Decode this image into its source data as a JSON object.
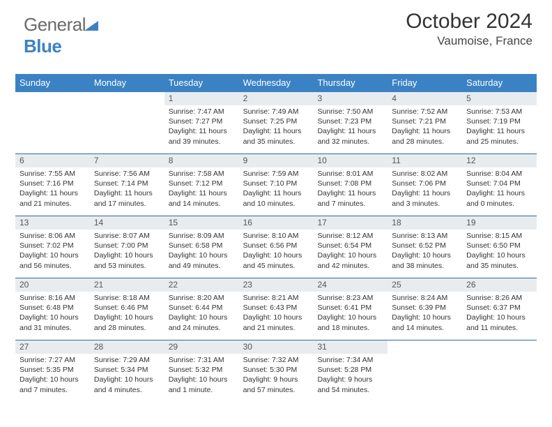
{
  "logo": {
    "text1": "General",
    "text2": "Blue"
  },
  "title": "October 2024",
  "subtitle": "Vaumoise, France",
  "colors": {
    "header_bg": "#3b82c4",
    "header_text": "#ffffff",
    "week_divider": "#2f6aa3",
    "daynum_bg": "#e8ecef",
    "body_text": "#333333"
  },
  "calendar": {
    "day_names": [
      "Sunday",
      "Monday",
      "Tuesday",
      "Wednesday",
      "Thursday",
      "Friday",
      "Saturday"
    ],
    "weeks": [
      [
        null,
        null,
        {
          "n": "1",
          "sunrise": "Sunrise: 7:47 AM",
          "sunset": "Sunset: 7:27 PM",
          "daylight": "Daylight: 11 hours and 39 minutes."
        },
        {
          "n": "2",
          "sunrise": "Sunrise: 7:49 AM",
          "sunset": "Sunset: 7:25 PM",
          "daylight": "Daylight: 11 hours and 35 minutes."
        },
        {
          "n": "3",
          "sunrise": "Sunrise: 7:50 AM",
          "sunset": "Sunset: 7:23 PM",
          "daylight": "Daylight: 11 hours and 32 minutes."
        },
        {
          "n": "4",
          "sunrise": "Sunrise: 7:52 AM",
          "sunset": "Sunset: 7:21 PM",
          "daylight": "Daylight: 11 hours and 28 minutes."
        },
        {
          "n": "5",
          "sunrise": "Sunrise: 7:53 AM",
          "sunset": "Sunset: 7:19 PM",
          "daylight": "Daylight: 11 hours and 25 minutes."
        }
      ],
      [
        {
          "n": "6",
          "sunrise": "Sunrise: 7:55 AM",
          "sunset": "Sunset: 7:16 PM",
          "daylight": "Daylight: 11 hours and 21 minutes."
        },
        {
          "n": "7",
          "sunrise": "Sunrise: 7:56 AM",
          "sunset": "Sunset: 7:14 PM",
          "daylight": "Daylight: 11 hours and 17 minutes."
        },
        {
          "n": "8",
          "sunrise": "Sunrise: 7:58 AM",
          "sunset": "Sunset: 7:12 PM",
          "daylight": "Daylight: 11 hours and 14 minutes."
        },
        {
          "n": "9",
          "sunrise": "Sunrise: 7:59 AM",
          "sunset": "Sunset: 7:10 PM",
          "daylight": "Daylight: 11 hours and 10 minutes."
        },
        {
          "n": "10",
          "sunrise": "Sunrise: 8:01 AM",
          "sunset": "Sunset: 7:08 PM",
          "daylight": "Daylight: 11 hours and 7 minutes."
        },
        {
          "n": "11",
          "sunrise": "Sunrise: 8:02 AM",
          "sunset": "Sunset: 7:06 PM",
          "daylight": "Daylight: 11 hours and 3 minutes."
        },
        {
          "n": "12",
          "sunrise": "Sunrise: 8:04 AM",
          "sunset": "Sunset: 7:04 PM",
          "daylight": "Daylight: 11 hours and 0 minutes."
        }
      ],
      [
        {
          "n": "13",
          "sunrise": "Sunrise: 8:06 AM",
          "sunset": "Sunset: 7:02 PM",
          "daylight": "Daylight: 10 hours and 56 minutes."
        },
        {
          "n": "14",
          "sunrise": "Sunrise: 8:07 AM",
          "sunset": "Sunset: 7:00 PM",
          "daylight": "Daylight: 10 hours and 53 minutes."
        },
        {
          "n": "15",
          "sunrise": "Sunrise: 8:09 AM",
          "sunset": "Sunset: 6:58 PM",
          "daylight": "Daylight: 10 hours and 49 minutes."
        },
        {
          "n": "16",
          "sunrise": "Sunrise: 8:10 AM",
          "sunset": "Sunset: 6:56 PM",
          "daylight": "Daylight: 10 hours and 45 minutes."
        },
        {
          "n": "17",
          "sunrise": "Sunrise: 8:12 AM",
          "sunset": "Sunset: 6:54 PM",
          "daylight": "Daylight: 10 hours and 42 minutes."
        },
        {
          "n": "18",
          "sunrise": "Sunrise: 8:13 AM",
          "sunset": "Sunset: 6:52 PM",
          "daylight": "Daylight: 10 hours and 38 minutes."
        },
        {
          "n": "19",
          "sunrise": "Sunrise: 8:15 AM",
          "sunset": "Sunset: 6:50 PM",
          "daylight": "Daylight: 10 hours and 35 minutes."
        }
      ],
      [
        {
          "n": "20",
          "sunrise": "Sunrise: 8:16 AM",
          "sunset": "Sunset: 6:48 PM",
          "daylight": "Daylight: 10 hours and 31 minutes."
        },
        {
          "n": "21",
          "sunrise": "Sunrise: 8:18 AM",
          "sunset": "Sunset: 6:46 PM",
          "daylight": "Daylight: 10 hours and 28 minutes."
        },
        {
          "n": "22",
          "sunrise": "Sunrise: 8:20 AM",
          "sunset": "Sunset: 6:44 PM",
          "daylight": "Daylight: 10 hours and 24 minutes."
        },
        {
          "n": "23",
          "sunrise": "Sunrise: 8:21 AM",
          "sunset": "Sunset: 6:43 PM",
          "daylight": "Daylight: 10 hours and 21 minutes."
        },
        {
          "n": "24",
          "sunrise": "Sunrise: 8:23 AM",
          "sunset": "Sunset: 6:41 PM",
          "daylight": "Daylight: 10 hours and 18 minutes."
        },
        {
          "n": "25",
          "sunrise": "Sunrise: 8:24 AM",
          "sunset": "Sunset: 6:39 PM",
          "daylight": "Daylight: 10 hours and 14 minutes."
        },
        {
          "n": "26",
          "sunrise": "Sunrise: 8:26 AM",
          "sunset": "Sunset: 6:37 PM",
          "daylight": "Daylight: 10 hours and 11 minutes."
        }
      ],
      [
        {
          "n": "27",
          "sunrise": "Sunrise: 7:27 AM",
          "sunset": "Sunset: 5:35 PM",
          "daylight": "Daylight: 10 hours and 7 minutes."
        },
        {
          "n": "28",
          "sunrise": "Sunrise: 7:29 AM",
          "sunset": "Sunset: 5:34 PM",
          "daylight": "Daylight: 10 hours and 4 minutes."
        },
        {
          "n": "29",
          "sunrise": "Sunrise: 7:31 AM",
          "sunset": "Sunset: 5:32 PM",
          "daylight": "Daylight: 10 hours and 1 minute."
        },
        {
          "n": "30",
          "sunrise": "Sunrise: 7:32 AM",
          "sunset": "Sunset: 5:30 PM",
          "daylight": "Daylight: 9 hours and 57 minutes."
        },
        {
          "n": "31",
          "sunrise": "Sunrise: 7:34 AM",
          "sunset": "Sunset: 5:28 PM",
          "daylight": "Daylight: 9 hours and 54 minutes."
        },
        null,
        null
      ]
    ]
  }
}
